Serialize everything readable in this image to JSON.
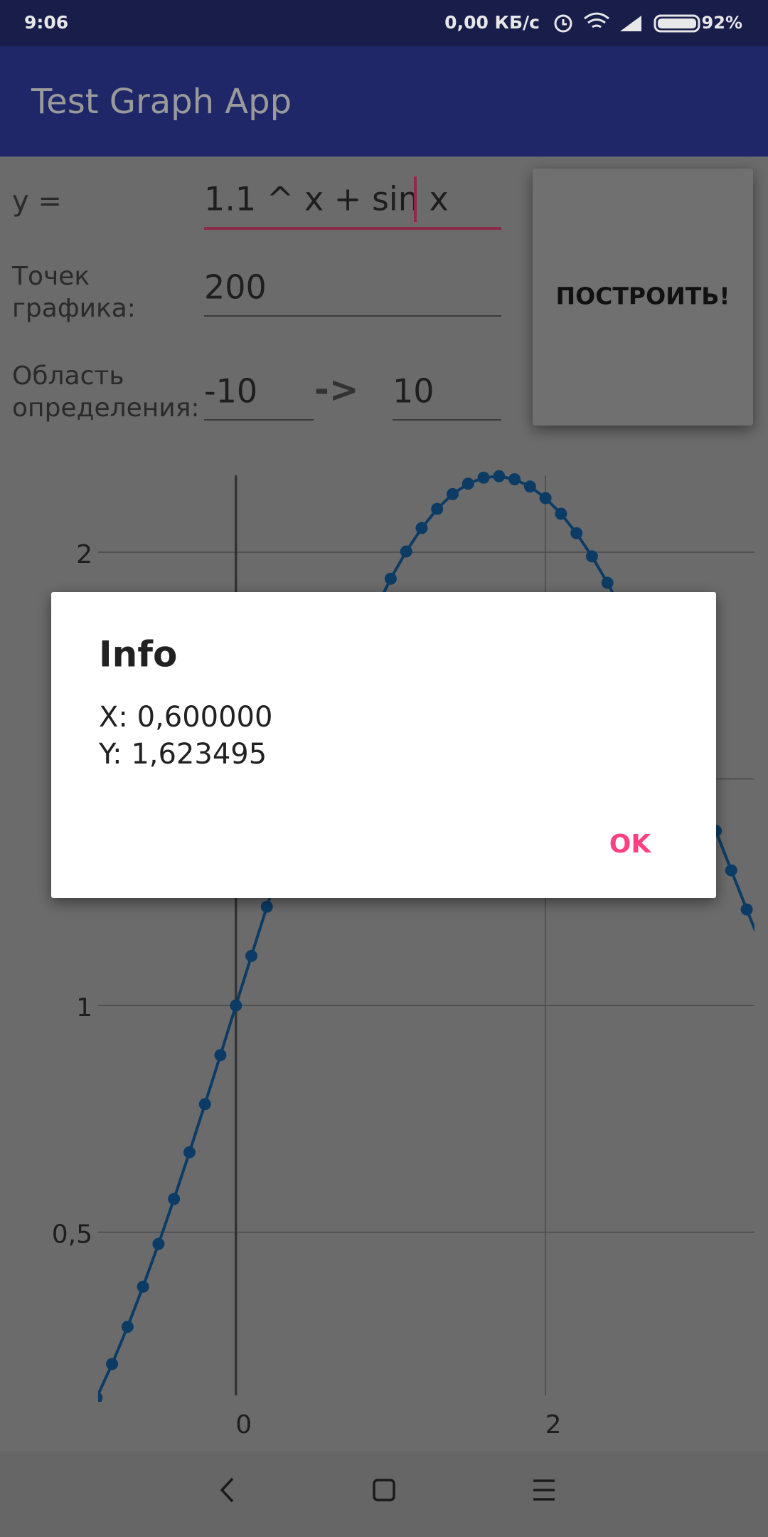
{
  "status_bar": {
    "time": "9:06",
    "speed": "0,00 КБ/с",
    "battery": "92%"
  },
  "app_bar": {
    "title": "Test Graph App"
  },
  "form": {
    "function_label": "y =",
    "function_input": "1.1 ^ x + sin x",
    "points_label_lines": [
      "Точек",
      "графика:"
    ],
    "points_input": "200",
    "domain_label_lines": [
      "Область",
      "определения:"
    ],
    "domain_from": "-10",
    "domain_arrow": "->",
    "domain_to": "10",
    "button": "ПОСТРОИТЬ!"
  },
  "chart_data": {
    "type": "line",
    "markers": true,
    "x": [
      -0.9,
      -0.8,
      -0.7,
      -0.6,
      -0.5,
      -0.4,
      -0.3,
      -0.2,
      -0.1,
      0,
      0.1,
      0.2,
      0.3,
      0.4,
      0.5,
      0.6,
      0.7,
      0.8,
      0.9,
      1.0,
      1.1,
      1.2,
      1.3,
      1.4,
      1.5,
      1.6,
      1.7,
      1.8,
      1.9,
      2.0,
      2.1,
      2.2,
      2.3,
      2.4,
      2.5,
      2.6,
      2.7,
      2.8,
      2.9,
      3.0,
      3.1,
      3.2,
      3.3,
      3.4
    ],
    "series": [
      {
        "color": "#0c3c66",
        "values": [
          0.1345,
          0.2092,
          0.2913,
          0.3798,
          0.4741,
          0.5732,
          0.6763,
          0.7824,
          0.8907,
          1,
          1.1094,
          1.2179,
          1.3245,
          1.4283,
          1.5282,
          1.6235,
          1.7132,
          1.7966,
          1.8729,
          1.9415,
          2.0017,
          2.0532,
          2.0955,
          2.1282,
          2.1512,
          2.1644,
          2.1676,
          2.161,
          2.1448,
          2.1193,
          2.0848,
          2.0418,
          1.9908,
          1.9325,
          1.8676,
          1.7967,
          1.7209,
          1.6409,
          1.5576,
          1.4721,
          1.3853,
          1.2982,
          1.2119,
          1.1272
        ]
      }
    ],
    "xlim": [
      -0.89,
      3.35
    ],
    "ylim": [
      0.14,
      2.19
    ],
    "xticks": [
      0,
      2
    ],
    "yticks": [
      {
        "value": 0.5,
        "label": "0,5"
      },
      1,
      {
        "value": 1.5,
        "label": "1,5"
      },
      2
    ],
    "grid": true
  },
  "dialog": {
    "title": "Info",
    "lines": [
      "X: 0,600000",
      "Y: 1,623495"
    ],
    "button": "OK"
  }
}
